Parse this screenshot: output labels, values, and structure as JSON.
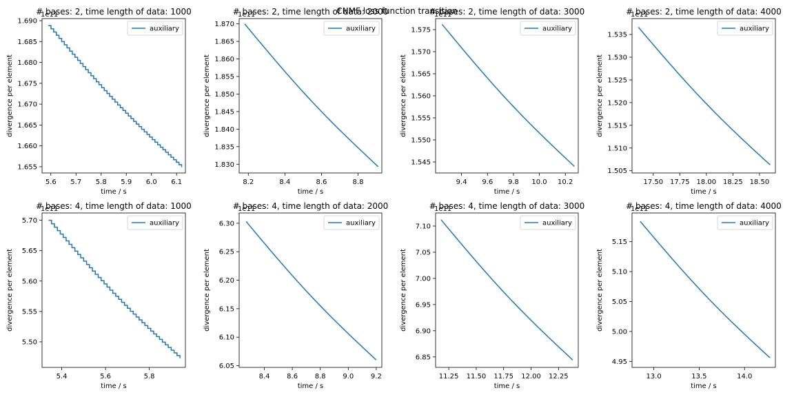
{
  "figure": {
    "suptitle": "CNMF loss function transition"
  },
  "chart_data": [
    {
      "type": "line",
      "title": "# bases: 2, time length of data: 1000",
      "xlabel": "time / s",
      "ylabel": "divergence per element",
      "offset_text": "1e11",
      "xlim": [
        5.565,
        6.135
      ],
      "ylim": [
        1.6535,
        1.6905
      ],
      "xticks": [
        "5.6",
        "5.7",
        "5.8",
        "5.9",
        "6.0",
        "6.1"
      ],
      "yticks": [
        "1.655",
        "1.660",
        "1.665",
        "1.670",
        "1.675",
        "1.680",
        "1.685",
        "1.690"
      ],
      "legend": "upper right",
      "series": [
        {
          "name": "auxiliary",
          "color": "#1f77b4",
          "steps": 50,
          "x": [
            5.59,
            6.12
          ],
          "y": [
            1.6888,
            1.6549
          ],
          "shape": "stair"
        }
      ]
    },
    {
      "type": "line",
      "title": "# bases: 2, time length of data: 2000",
      "xlabel": "time / s",
      "ylabel": "divergence per element",
      "offset_text": "1e11",
      "xlim": [
        8.15,
        8.93
      ],
      "ylim": [
        1.8275,
        1.8715
      ],
      "xticks": [
        "8.2",
        "8.4",
        "8.6",
        "8.8"
      ],
      "yticks": [
        "1.830",
        "1.835",
        "1.840",
        "1.845",
        "1.850",
        "1.855",
        "1.860",
        "1.865",
        "1.870"
      ],
      "legend": "upper right",
      "series": [
        {
          "name": "auxiliary",
          "color": "#1f77b4",
          "steps": 60,
          "x": [
            8.18,
            8.91
          ],
          "y": [
            1.87,
            1.8293
          ],
          "shape": "smooth"
        }
      ]
    },
    {
      "type": "line",
      "title": "# bases: 2, time length of data: 3000",
      "xlabel": "time / s",
      "ylabel": "divergence per element",
      "offset_text": "1e11",
      "xlim": [
        9.2,
        10.3
      ],
      "ylim": [
        1.5425,
        1.5775
      ],
      "xticks": [
        "9.4",
        "9.6",
        "9.8",
        "10.0",
        "10.2"
      ],
      "yticks": [
        "1.545",
        "1.550",
        "1.555",
        "1.560",
        "1.565",
        "1.570",
        "1.575"
      ],
      "legend": "upper right",
      "series": [
        {
          "name": "auxiliary",
          "color": "#1f77b4",
          "steps": 60,
          "x": [
            9.25,
            10.27
          ],
          "y": [
            1.5762,
            1.544
          ],
          "shape": "smooth"
        }
      ]
    },
    {
      "type": "line",
      "title": "# bases: 2, time length of data: 4000",
      "xlabel": "time / s",
      "ylabel": "divergence per element",
      "offset_text": "1e11",
      "xlim": [
        17.3,
        18.65
      ],
      "ylim": [
        1.5045,
        1.5385
      ],
      "xticks": [
        "17.50",
        "17.75",
        "18.00",
        "18.25",
        "18.50"
      ],
      "yticks": [
        "1.505",
        "1.510",
        "1.515",
        "1.520",
        "1.525",
        "1.530",
        "1.535"
      ],
      "legend": "upper right",
      "series": [
        {
          "name": "auxiliary",
          "color": "#1f77b4",
          "steps": 60,
          "x": [
            17.36,
            18.6
          ],
          "y": [
            1.5366,
            1.5063
          ],
          "shape": "smooth"
        }
      ]
    },
    {
      "type": "line",
      "title": "# bases: 4, time length of data: 1000",
      "xlabel": "time / s",
      "ylabel": "divergence per element",
      "offset_text": "1e11",
      "xlim": [
        5.31,
        5.965
      ],
      "ylim": [
        5.458,
        5.712
      ],
      "xticks": [
        "5.4",
        "5.6",
        "5.8"
      ],
      "yticks": [
        "5.50",
        "5.55",
        "5.60",
        "5.65",
        "5.70"
      ],
      "legend": "upper right",
      "series": [
        {
          "name": "auxiliary",
          "color": "#1f77b4",
          "steps": 45,
          "x": [
            5.34,
            5.94
          ],
          "y": [
            5.7,
            5.473
          ],
          "shape": "stair"
        }
      ]
    },
    {
      "type": "line",
      "title": "# bases: 4, time length of data: 2000",
      "xlabel": "time / s",
      "ylabel": "divergence per element",
      "offset_text": "1e11",
      "xlim": [
        8.22,
        9.24
      ],
      "ylim": [
        6.047,
        6.318
      ],
      "xticks": [
        "8.4",
        "8.6",
        "8.8",
        "9.0",
        "9.2"
      ],
      "yticks": [
        "6.05",
        "6.10",
        "6.15",
        "6.20",
        "6.25",
        "6.30"
      ],
      "legend": "upper right",
      "series": [
        {
          "name": "auxiliary",
          "color": "#1f77b4",
          "steps": 60,
          "x": [
            8.27,
            9.2
          ],
          "y": [
            6.303,
            6.06
          ],
          "shape": "smooth"
        }
      ]
    },
    {
      "type": "line",
      "title": "# bases: 4, time length of data: 3000",
      "xlabel": "time / s",
      "ylabel": "divergence per element",
      "offset_text": "1e11",
      "xlim": [
        11.13,
        12.43
      ],
      "ylim": [
        6.83,
        7.125
      ],
      "xticks": [
        "11.25",
        "11.50",
        "11.75",
        "12.00",
        "12.25"
      ],
      "yticks": [
        "6.85",
        "6.90",
        "6.95",
        "7.00",
        "7.05",
        "7.10"
      ],
      "legend": "upper right",
      "series": [
        {
          "name": "auxiliary",
          "color": "#1f77b4",
          "steps": 60,
          "x": [
            11.18,
            12.38
          ],
          "y": [
            7.112,
            6.844
          ],
          "shape": "smooth"
        }
      ]
    },
    {
      "type": "line",
      "title": "# bases: 4, time length of data: 4000",
      "xlabel": "time / s",
      "ylabel": "divergence per element",
      "offset_text": "1e11",
      "xlim": [
        12.76,
        14.34
      ],
      "ylim": [
        4.94,
        5.198
      ],
      "xticks": [
        "13.0",
        "13.5",
        "14.0"
      ],
      "yticks": [
        "4.95",
        "5.00",
        "5.05",
        "5.10",
        "5.15"
      ],
      "legend": "upper right",
      "series": [
        {
          "name": "auxiliary",
          "color": "#1f77b4",
          "steps": 60,
          "x": [
            12.85,
            14.28
          ],
          "y": [
            5.184,
            4.956
          ],
          "shape": "smooth"
        }
      ]
    }
  ]
}
